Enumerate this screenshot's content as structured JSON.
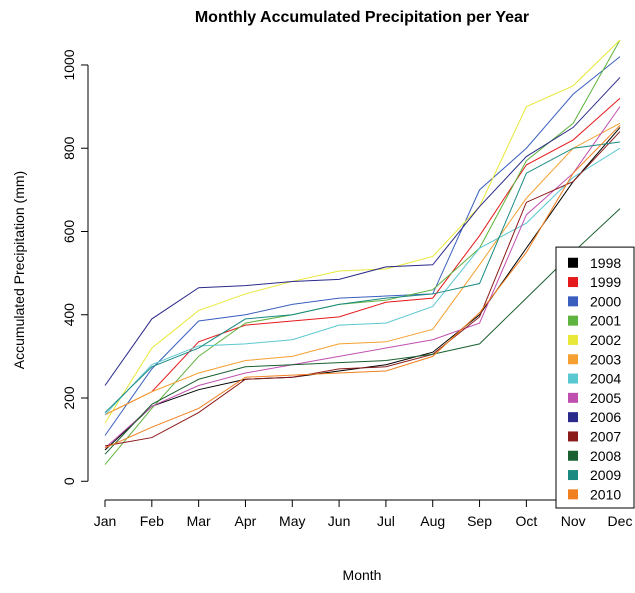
{
  "chart_data": {
    "type": "line",
    "title": "Monthly Accumulated Precipitation per Year",
    "x_label": "Month",
    "y_label": "Accumulated Precipitation (mm)",
    "categories": [
      "Jan",
      "Feb",
      "Mar",
      "Apr",
      "May",
      "Jun",
      "Jul",
      "Aug",
      "Sep",
      "Oct",
      "Nov",
      "Dec"
    ],
    "ylim": [
      -45,
      1060
    ],
    "yticks": [
      0,
      200,
      400,
      600,
      800,
      1000
    ],
    "legend": "bottom-right",
    "series": [
      {
        "name": "1998",
        "color": "#000000",
        "values": [
          75,
          180,
          220,
          245,
          250,
          265,
          280,
          310,
          400,
          560,
          720,
          850
        ]
      },
      {
        "name": "1999",
        "color": "#e41a1c",
        "values": [
          160,
          215,
          335,
          375,
          385,
          395,
          430,
          440,
          590,
          760,
          820,
          920
        ]
      },
      {
        "name": "2000",
        "color": "#3a5fbf",
        "values": [
          110,
          270,
          385,
          400,
          425,
          440,
          445,
          450,
          700,
          800,
          930,
          1020
        ]
      },
      {
        "name": "2001",
        "color": "#5fb33f",
        "values": [
          40,
          175,
          300,
          380,
          400,
          425,
          435,
          460,
          560,
          770,
          860,
          1060
        ]
      },
      {
        "name": "2002",
        "color": "#e8e838",
        "values": [
          140,
          320,
          410,
          450,
          480,
          505,
          510,
          540,
          660,
          900,
          950,
          1060
        ]
      },
      {
        "name": "2003",
        "color": "#f5a030",
        "values": [
          160,
          215,
          260,
          290,
          300,
          330,
          335,
          365,
          520,
          680,
          800,
          860
        ]
      },
      {
        "name": "2004",
        "color": "#5ac8d0",
        "values": [
          160,
          280,
          325,
          330,
          340,
          375,
          380,
          420,
          560,
          620,
          730,
          800
        ]
      },
      {
        "name": "2005",
        "color": "#c050b0",
        "values": [
          80,
          180,
          230,
          260,
          280,
          300,
          320,
          340,
          380,
          640,
          740,
          900
        ]
      },
      {
        "name": "2006",
        "color": "#2a2a8a",
        "values": [
          230,
          390,
          465,
          470,
          480,
          485,
          515,
          520,
          660,
          780,
          850,
          970
        ]
      },
      {
        "name": "2007",
        "color": "#8b1a1a",
        "values": [
          85,
          105,
          165,
          245,
          250,
          270,
          275,
          305,
          395,
          670,
          720,
          840
        ]
      },
      {
        "name": "2008",
        "color": "#1a6030",
        "values": [
          65,
          185,
          245,
          275,
          280,
          285,
          290,
          305,
          330,
          440,
          550,
          655
        ]
      },
      {
        "name": "2009",
        "color": "#1a8a80",
        "values": [
          165,
          275,
          320,
          390,
          400,
          425,
          440,
          450,
          475,
          740,
          800,
          815
        ]
      },
      {
        "name": "2010",
        "color": "#f08020",
        "values": [
          80,
          130,
          175,
          250,
          255,
          260,
          265,
          300,
          405,
          550,
          740,
          855
        ]
      }
    ]
  }
}
